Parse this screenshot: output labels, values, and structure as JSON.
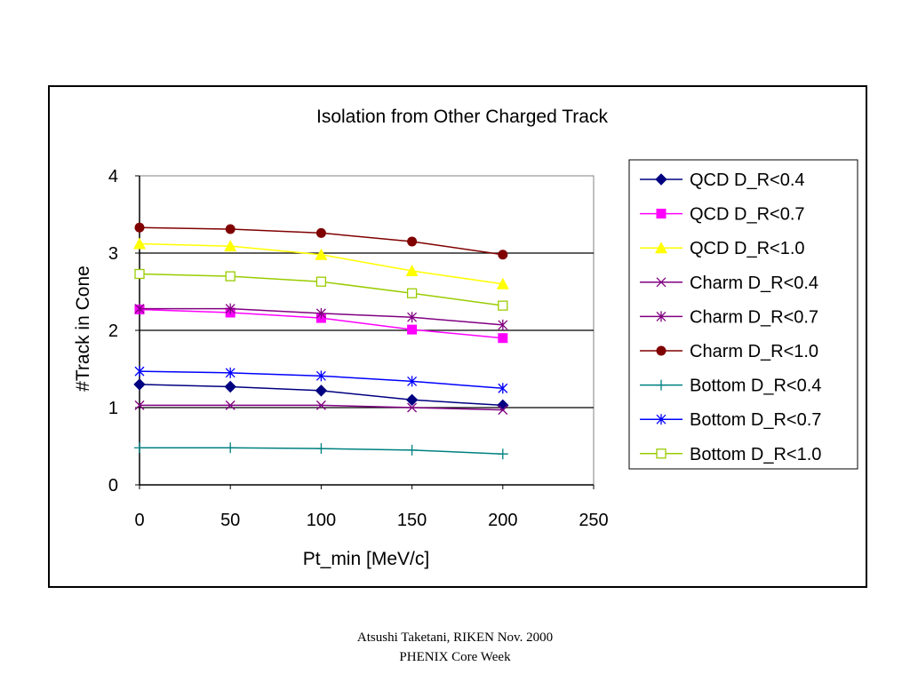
{
  "chart_data": {
    "type": "line",
    "title": "Isolation from Other Charged Track",
    "xlabel": "Pt_min [MeV/c]",
    "ylabel": "#Track in Cone",
    "x": [
      0,
      50,
      100,
      150,
      200
    ],
    "xlim": [
      0,
      250
    ],
    "ylim": [
      0,
      4
    ],
    "xticks": [
      "0",
      "50",
      "100",
      "150",
      "200",
      "250"
    ],
    "yticks": [
      "0",
      "1",
      "2",
      "3",
      "4"
    ],
    "grid": "horizontal major lines",
    "legend_position": "right",
    "series": [
      {
        "name": "QCD D_R<0.4",
        "values": [
          1.3,
          1.27,
          1.22,
          1.1,
          1.03
        ],
        "color": "#000080",
        "marker": "diamond"
      },
      {
        "name": "QCD D_R<0.7",
        "values": [
          2.27,
          2.23,
          2.16,
          2.01,
          1.9
        ],
        "color": "#ff00ff",
        "marker": "square"
      },
      {
        "name": "QCD D_R<1.0",
        "values": [
          3.12,
          3.09,
          2.98,
          2.77,
          2.6
        ],
        "color": "#ffff00",
        "marker": "triangle"
      },
      {
        "name": "Charm D_R<0.4",
        "values": [
          1.03,
          1.03,
          1.03,
          1.0,
          0.97
        ],
        "color": "#800080",
        "marker": "x"
      },
      {
        "name": "Charm D_R<0.7",
        "values": [
          2.28,
          2.28,
          2.22,
          2.17,
          2.07
        ],
        "color": "#800080",
        "marker": "asterisk"
      },
      {
        "name": "Charm D_R<1.0",
        "values": [
          3.33,
          3.31,
          3.26,
          3.15,
          2.98
        ],
        "color": "#800000",
        "marker": "circle"
      },
      {
        "name": "Bottom D_R<0.4",
        "values": [
          0.48,
          0.48,
          0.47,
          0.45,
          0.4
        ],
        "color": "#008080",
        "marker": "plus"
      },
      {
        "name": "Bottom D_R<0.7",
        "values": [
          1.47,
          1.45,
          1.41,
          1.34,
          1.25
        ],
        "color": "#0000ff",
        "marker": "asterisk"
      },
      {
        "name": "Bottom D_R<1.0",
        "values": [
          2.73,
          2.7,
          2.63,
          2.48,
          2.32
        ],
        "color": "#99cc00",
        "marker": "open-square"
      }
    ]
  },
  "footer": {
    "line1": "Atsushi Taketani, RIKEN Nov. 2000",
    "line2": "PHENIX Core Week"
  }
}
